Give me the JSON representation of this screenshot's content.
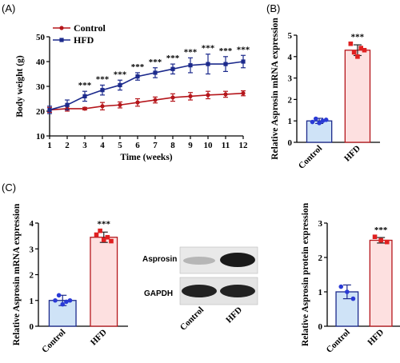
{
  "panel_labels": [
    "(A)",
    "(B)",
    "(C)"
  ],
  "colors": {
    "control": "#b5161b",
    "hfd": "#1c2a8c",
    "bar_control_fill": "#cfe3f7",
    "bar_control_edge": "#1c2a8c",
    "bar_hfd_fill": "#fde0e0",
    "bar_hfd_edge": "#b5161b",
    "dot_control": "#2a3ad6",
    "dot_hfd": "#e02020"
  },
  "chart_data": [
    {
      "type": "line",
      "panel": "(A)",
      "xlabel": "Time (weeks)",
      "ylabel": "Body weight (g)",
      "xlim": [
        1,
        12
      ],
      "ylim": [
        10,
        50
      ],
      "xticks": [
        "1",
        "2",
        "3",
        "4",
        "5",
        "6",
        "7",
        "8",
        "9",
        "10",
        "11",
        "12"
      ],
      "yticks": [
        "10",
        "20",
        "30",
        "40",
        "50"
      ],
      "legend_position": "top-left",
      "x": [
        1,
        2,
        3,
        4,
        5,
        6,
        7,
        8,
        9,
        10,
        11,
        12
      ],
      "series": [
        {
          "name": "Control",
          "values": [
            20.5,
            21,
            21,
            22,
            22.5,
            23.5,
            24.5,
            25.5,
            26,
            26.5,
            26.8,
            27.2
          ],
          "err": [
            1,
            1,
            0.5,
            1.5,
            1.2,
            1.5,
            1.2,
            1.5,
            1.5,
            1.5,
            1.2,
            1
          ]
        },
        {
          "name": "HFD",
          "values": [
            20.5,
            22.5,
            26,
            28.5,
            30.5,
            34,
            35.5,
            37,
            38.5,
            39,
            39,
            40
          ],
          "err": [
            1.5,
            2,
            2,
            2,
            2,
            1.5,
            2,
            2,
            3,
            4,
            3,
            2.5
          ]
        }
      ],
      "significance": {
        "label": "***",
        "x": [
          3,
          4,
          5,
          6,
          7,
          8,
          9,
          10,
          11,
          12
        ]
      }
    },
    {
      "type": "bar",
      "panel": "(B)",
      "ylabel": "Relative Asprosin mRNA expression",
      "categories": [
        "Control",
        "HFD"
      ],
      "values": [
        1.0,
        4.3
      ],
      "err": [
        0.12,
        0.25
      ],
      "points": [
        [
          0.95,
          1.1,
          0.9,
          1.0,
          1.05
        ],
        [
          4.6,
          4.2,
          4.0,
          4.4,
          4.3
        ]
      ],
      "ylim": [
        0,
        5
      ],
      "yticks": [
        "0",
        "1",
        "2",
        "3",
        "4",
        "5"
      ],
      "significance": "***"
    },
    {
      "type": "bar",
      "panel": "(C)",
      "ylabel": "Relative Asprosin mRNA expression",
      "categories": [
        "Control",
        "HFD"
      ],
      "values": [
        1.0,
        3.45
      ],
      "err": [
        0.2,
        0.2
      ],
      "points": [
        [
          1.0,
          1.2,
          0.85,
          0.95,
          1.0
        ],
        [
          3.55,
          3.7,
          3.35,
          3.45,
          3.3
        ]
      ],
      "ylim": [
        0,
        4
      ],
      "yticks": [
        "0",
        "1",
        "2",
        "3",
        "4"
      ],
      "significance": "***"
    },
    {
      "type": "bar",
      "panel": "(C)",
      "ylabel": "Relative Asprosin protein expression",
      "categories": [
        "Control",
        "HFD"
      ],
      "values": [
        1.0,
        2.5
      ],
      "err": [
        0.2,
        0.08
      ],
      "points": [
        [
          1.15,
          1.0,
          0.8
        ],
        [
          2.6,
          2.5,
          2.45
        ]
      ],
      "ylim": [
        0,
        3
      ],
      "yticks": [
        "0",
        "1",
        "2",
        "3"
      ],
      "significance": "***"
    }
  ],
  "blot": {
    "rows": [
      "Asprosin",
      "GAPDH"
    ],
    "lanes": [
      "Control",
      "HFD"
    ]
  }
}
